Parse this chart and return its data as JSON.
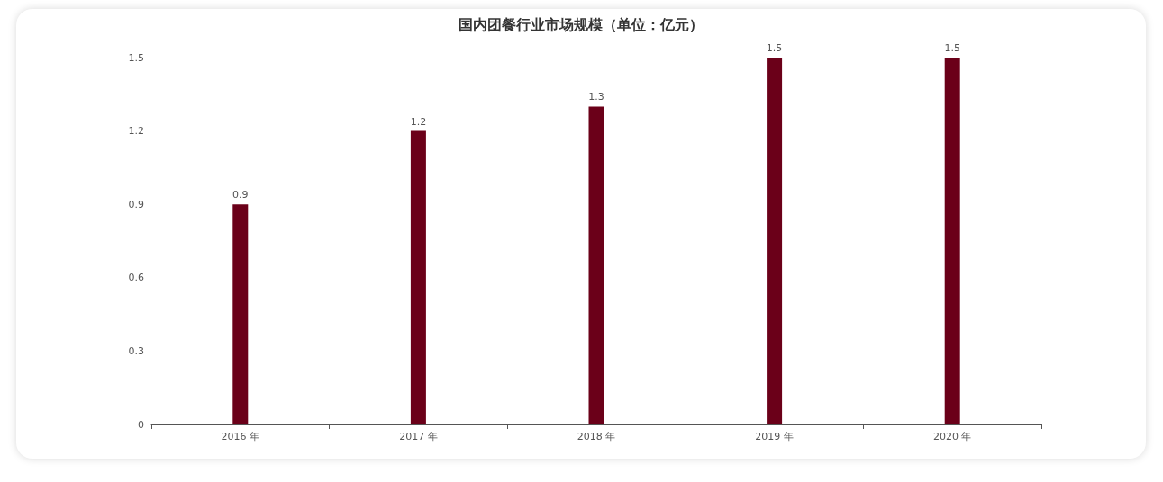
{
  "chart_data": {
    "type": "bar",
    "title": "国内团餐行业市场规模（单位：亿元）",
    "categories": [
      "2016 年",
      "2017 年",
      "2018 年",
      "2019 年",
      "2020 年"
    ],
    "values": [
      0.9,
      1.2,
      1.3,
      1.5,
      1.5
    ],
    "color": "#6b0019",
    "ylim": [
      0,
      1.5
    ],
    "yticks": [
      0,
      0.3,
      0.6,
      0.9,
      1.2,
      1.5
    ],
    "grid": false,
    "data_labels": true
  }
}
